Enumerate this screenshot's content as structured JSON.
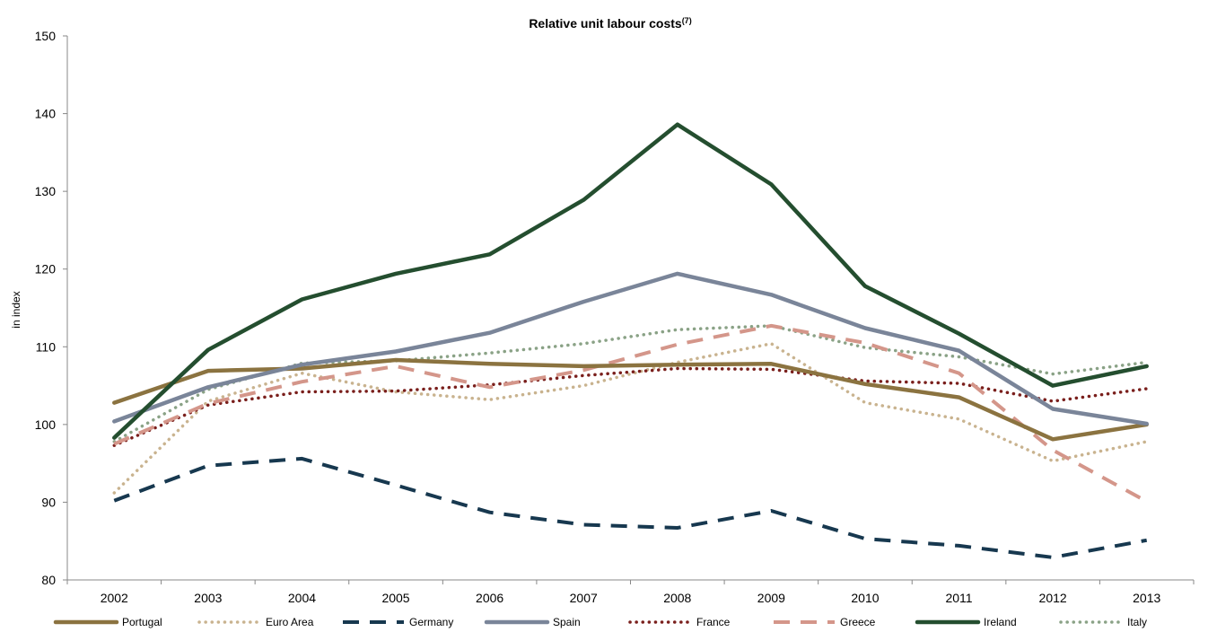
{
  "chart_data": {
    "type": "line",
    "title": "Relative unit labour costs",
    "title_superscript": "(7)",
    "xlabel": "",
    "ylabel": "in index",
    "ylim": [
      80,
      150
    ],
    "y_ticks": [
      "80",
      "90",
      "100",
      "110",
      "120",
      "130",
      "140",
      "150"
    ],
    "x": [
      "2002",
      "2003",
      "2004",
      "2005",
      "2006",
      "2007",
      "2008",
      "2009",
      "2010",
      "2011",
      "2012",
      "2013"
    ],
    "grid": false,
    "legend_position": "bottom",
    "series": [
      {
        "name": "Portugal",
        "color": "#8b7340",
        "style": "solid",
        "values": [
          102.8,
          106.9,
          107.2,
          108.3,
          107.8,
          107.5,
          107.7,
          107.8,
          105.2,
          103.5,
          98.1,
          100.0
        ]
      },
      {
        "name": "Euro Area",
        "color": "#c9b38f",
        "style": "dotted",
        "values": [
          91.2,
          103.0,
          106.6,
          104.2,
          103.2,
          105.0,
          108.0,
          110.4,
          102.8,
          100.7,
          95.3,
          97.8
        ]
      },
      {
        "name": "Germany",
        "color": "#17384f",
        "style": "dashed",
        "values": [
          90.2,
          94.7,
          95.6,
          92.2,
          88.7,
          87.1,
          86.7,
          88.9,
          85.3,
          84.4,
          82.9,
          85.1
        ]
      },
      {
        "name": "Spain",
        "color": "#7a8599",
        "style": "solid",
        "values": [
          100.4,
          104.8,
          107.7,
          109.4,
          111.8,
          115.8,
          119.4,
          116.7,
          112.4,
          109.5,
          102.0,
          100.1
        ]
      },
      {
        "name": "France",
        "color": "#7a1f1c",
        "style": "dotted",
        "values": [
          97.3,
          102.5,
          104.2,
          104.3,
          105.1,
          106.3,
          107.2,
          107.1,
          105.6,
          105.3,
          103.0,
          104.6
        ]
      },
      {
        "name": "Greece",
        "color": "#d4968a",
        "style": "dashed",
        "values": [
          97.5,
          102.7,
          105.5,
          107.5,
          104.8,
          107.0,
          110.3,
          112.7,
          110.5,
          106.6,
          96.7,
          90.1
        ]
      },
      {
        "name": "Ireland",
        "color": "#244e2f",
        "style": "solid",
        "values": [
          98.3,
          109.6,
          116.1,
          119.4,
          121.9,
          128.9,
          138.6,
          130.9,
          117.8,
          111.7,
          105.0,
          107.5
        ]
      },
      {
        "name": "Italy",
        "color": "#8aa286",
        "style": "dotted",
        "values": [
          97.8,
          104.5,
          107.9,
          108.2,
          109.2,
          110.4,
          112.2,
          112.7,
          109.9,
          108.7,
          106.5,
          108.0
        ]
      }
    ]
  }
}
